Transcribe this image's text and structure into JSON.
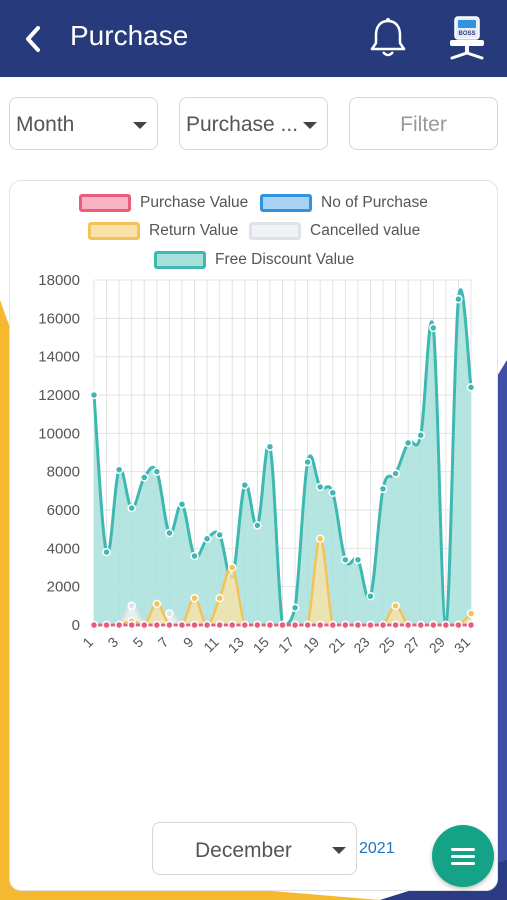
{
  "header": {
    "title": "Purchase",
    "bg_color": "#263a7c",
    "icons": [
      "back-arrow-icon",
      "bell-icon",
      "boss-chair-icon"
    ],
    "boss_icon_text": "BOSS"
  },
  "filters": {
    "period": "Month",
    "type": "Purchase ...",
    "filter_button": "Filter"
  },
  "legend": [
    {
      "label": "Purchase Value",
      "border": "#e85d7c",
      "fill": "#f6b3c3"
    },
    {
      "label": "No of Purchase",
      "border": "#2f93e0",
      "fill": "#a9d3f5"
    },
    {
      "label": "Return Value",
      "border": "#f3c35a",
      "fill": "#f9e2a9"
    },
    {
      "label": "Cancelled value",
      "border": "#dfe3e8",
      "fill": "#eff1f4"
    },
    {
      "label": "Free Discount Value",
      "border": "#3fb8b2",
      "fill": "#a8e0dc"
    }
  ],
  "chart_data": {
    "type": "area",
    "x": [
      "1",
      "2",
      "3",
      "4",
      "5",
      "6",
      "7",
      "8",
      "9",
      "10",
      "11",
      "12",
      "13",
      "14",
      "15",
      "16",
      "17",
      "18",
      "19",
      "20",
      "21",
      "22",
      "23",
      "24",
      "25",
      "26",
      "27",
      "28",
      "29",
      "30",
      "31"
    ],
    "x_tick_labels": [
      "1",
      "3",
      "5",
      "7",
      "9",
      "11",
      "13",
      "15",
      "17",
      "19",
      "21",
      "23",
      "25",
      "27",
      "29",
      "31"
    ],
    "ylim": [
      0,
      18000
    ],
    "y_ticks": [
      0,
      2000,
      4000,
      6000,
      8000,
      10000,
      12000,
      14000,
      16000,
      18000
    ],
    "grid": true,
    "legend_position": "top",
    "series": [
      {
        "name": "Purchase Value",
        "color": "#e85d7c",
        "values": [
          0,
          0,
          0,
          0,
          0,
          0,
          0,
          0,
          0,
          0,
          0,
          0,
          0,
          0,
          0,
          0,
          0,
          0,
          0,
          0,
          0,
          0,
          0,
          0,
          0,
          0,
          0,
          0,
          0,
          0,
          0
        ]
      },
      {
        "name": "No of Purchase",
        "color": "#2f93e0",
        "values": [
          0,
          0,
          0,
          0,
          0,
          0,
          0,
          0,
          0,
          0,
          0,
          0,
          0,
          0,
          0,
          0,
          0,
          0,
          0,
          0,
          0,
          0,
          0,
          0,
          0,
          0,
          0,
          0,
          0,
          0,
          0
        ]
      },
      {
        "name": "Return Value",
        "color": "#f3c35a",
        "values": [
          0,
          0,
          0,
          200,
          0,
          1100,
          0,
          0,
          1400,
          0,
          1400,
          3000,
          0,
          0,
          0,
          0,
          0,
          0,
          4500,
          0,
          0,
          0,
          0,
          0,
          1000,
          0,
          0,
          0,
          0,
          0,
          600
        ]
      },
      {
        "name": "Cancelled value",
        "color": "#dfe3e8",
        "values": [
          0,
          0,
          0,
          1000,
          0,
          0,
          600,
          0,
          0,
          0,
          0,
          0,
          0,
          0,
          0,
          0,
          0,
          0,
          0,
          0,
          0,
          0,
          0,
          0,
          0,
          0,
          0,
          0,
          0,
          0,
          0
        ]
      },
      {
        "name": "Free Discount Value",
        "color": "#3fb8b2",
        "values": [
          12000,
          3800,
          8100,
          6100,
          7700,
          8000,
          4800,
          6300,
          3600,
          4500,
          4700,
          2500,
          7300,
          5200,
          9300,
          0,
          900,
          8500,
          7200,
          6900,
          3400,
          3400,
          1500,
          7100,
          7900,
          9500,
          9900,
          15500,
          0,
          17000,
          12400
        ]
      }
    ]
  },
  "footer": {
    "month": "December",
    "year": "2021",
    "fab_icon": "menu-icon"
  }
}
